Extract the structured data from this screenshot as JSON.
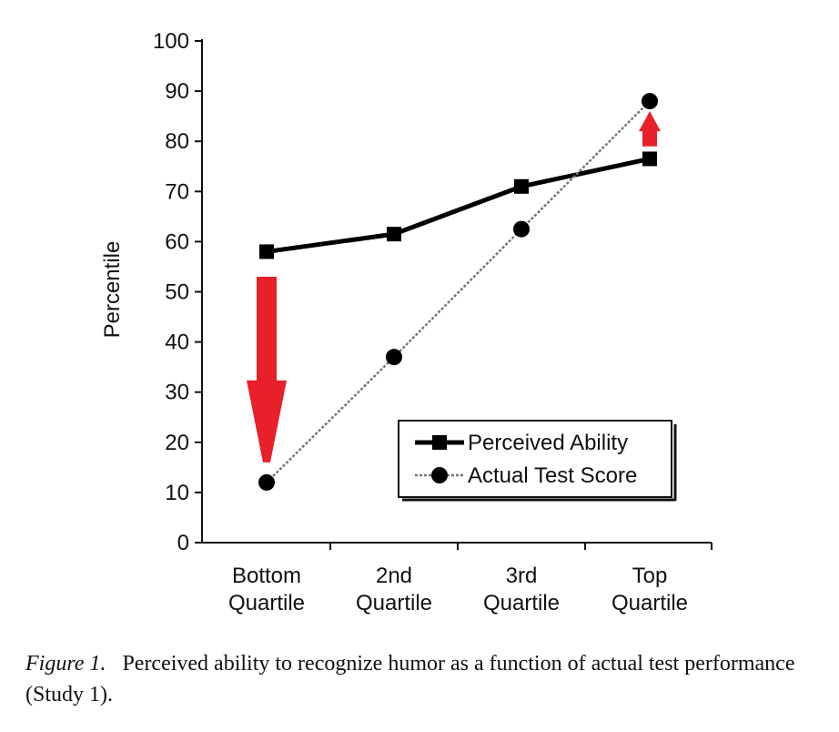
{
  "chart_data": {
    "type": "line",
    "title": "",
    "xlabel": "",
    "ylabel": "Percentile",
    "ylim": [
      0,
      100
    ],
    "yticks": [
      0,
      10,
      20,
      30,
      40,
      50,
      60,
      70,
      80,
      90,
      100
    ],
    "categories": [
      [
        "Bottom",
        "Quartile"
      ],
      [
        "2nd",
        "Quartile"
      ],
      [
        "3rd",
        "Quartile"
      ],
      [
        "Top",
        "Quartile"
      ]
    ],
    "series": [
      {
        "name": "Perceived Ability",
        "values": [
          58,
          61.5,
          71,
          76.5
        ],
        "marker": "square",
        "style": "solid",
        "color": "#000000"
      },
      {
        "name": "Actual Test Score",
        "values": [
          12,
          37,
          62.5,
          88
        ],
        "marker": "circle",
        "style": "dotted",
        "color": "#000000"
      }
    ],
    "legend_position": "lower-right",
    "annotations": [
      {
        "type": "arrow",
        "direction": "down",
        "category": "Bottom Quartile",
        "from": 53,
        "to": 16,
        "color": "#e8202a"
      },
      {
        "type": "arrow",
        "direction": "up",
        "category": "Top Quartile",
        "from": 79,
        "to": 86,
        "color": "#e8202a"
      }
    ]
  },
  "caption": {
    "label": "Figure 1.",
    "text": "Perceived ability to recognize humor as a function of actual test performance (Study 1)."
  }
}
